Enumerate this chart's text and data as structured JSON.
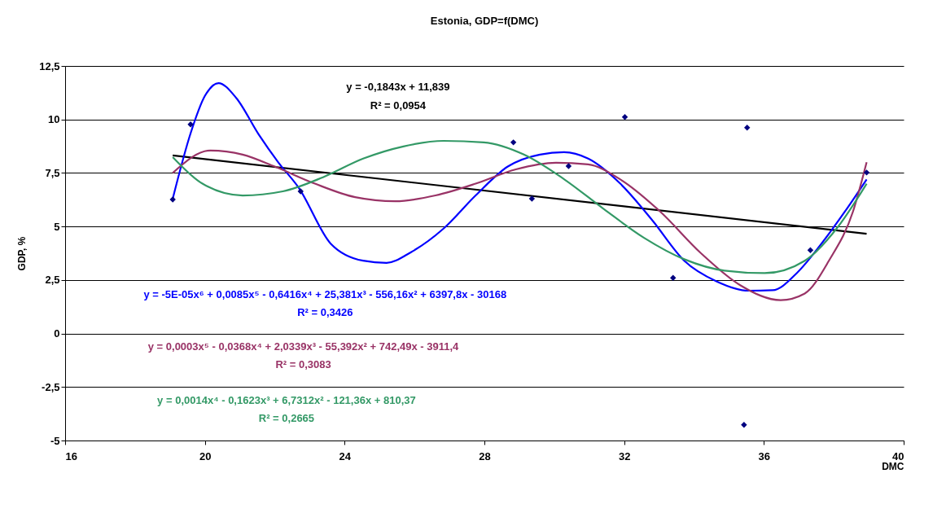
{
  "chart_data": {
    "type": "scatter",
    "title": "Estonia, GDP=f(DMC)",
    "xlabel": "DMC",
    "ylabel": "GDP, %",
    "xlim": [
      16,
      40
    ],
    "xticks": [
      16,
      20,
      24,
      28,
      32,
      36,
      40
    ],
    "ylim": [
      -5,
      12.5
    ],
    "yticks": [
      {
        "value": -5,
        "label": "-5"
      },
      {
        "value": -2.5,
        "label": "-2,5"
      },
      {
        "value": 0,
        "label": "0"
      },
      {
        "value": 2.5,
        "label": "2,5"
      },
      {
        "value": 5,
        "label": "5"
      },
      {
        "value": 7.5,
        "label": "7,5"
      },
      {
        "value": 10,
        "label": "10"
      },
      {
        "value": 12.5,
        "label": "12,5"
      }
    ],
    "grid": "y",
    "series": [
      {
        "marker": "diamond",
        "color": "#000080",
        "x": [
          19.08,
          19.59,
          22.74,
          28.83,
          29.36,
          30.41,
          32.02,
          33.4,
          35.52,
          35.43,
          37.33,
          38.94
        ],
        "values": [
          6.26,
          9.77,
          6.64,
          8.93,
          6.3,
          7.82,
          10.11,
          2.6,
          9.62,
          -4.27,
          3.89,
          7.52
        ]
      },
      {
        "type": "line",
        "color": "#000000",
        "x": [
          19.08,
          38.94
        ],
        "values": [
          8.32,
          4.66
        ]
      },
      {
        "type": "line",
        "color": "#0000ff",
        "x": [
          19.08,
          19.6,
          20.0,
          20.39,
          20.9,
          21.54,
          22.1,
          22.69,
          23.6,
          24.53,
          25.2,
          25.9,
          26.83,
          27.75,
          28.67,
          29.59,
          30.28,
          30.97,
          31.89,
          32.8,
          33.72,
          34.64,
          35.56,
          36.25,
          36.94,
          37.63,
          38.32,
          38.94
        ],
        "values": [
          6.3,
          9.4,
          11.1,
          11.7,
          11.0,
          9.3,
          8.0,
          6.8,
          4.2,
          3.4,
          3.3,
          3.8,
          4.9,
          6.45,
          7.8,
          8.36,
          8.47,
          8.17,
          7.0,
          5.3,
          3.4,
          2.44,
          2.0,
          2.02,
          2.82,
          4.16,
          5.7,
          7.2
        ]
      },
      {
        "type": "line",
        "color": "#993366",
        "x": [
          19.08,
          20.16,
          21.08,
          22.0,
          23.15,
          24.3,
          25.45,
          26.6,
          27.75,
          28.9,
          30.05,
          30.97,
          31.89,
          33.03,
          34.18,
          35.33,
          36.48,
          37.17,
          37.86,
          38.55,
          38.94
        ],
        "values": [
          7.5,
          8.55,
          8.36,
          7.8,
          7.0,
          6.37,
          6.18,
          6.45,
          7.0,
          7.67,
          7.98,
          7.9,
          7.2,
          5.7,
          3.78,
          2.25,
          1.56,
          1.87,
          3.4,
          5.7,
          8.0
        ]
      },
      {
        "type": "line",
        "color": "#339966",
        "x": [
          19.08,
          19.93,
          21.08,
          22.23,
          23.38,
          24.53,
          25.68,
          26.83,
          27.98,
          29.13,
          30.28,
          31.43,
          32.57,
          33.72,
          34.87,
          36.02,
          37.17,
          38.09,
          38.94
        ],
        "values": [
          8.24,
          7.0,
          6.45,
          6.64,
          7.3,
          8.17,
          8.74,
          9.0,
          8.93,
          8.36,
          7.21,
          5.8,
          4.47,
          3.47,
          2.94,
          2.82,
          3.4,
          4.92,
          7.0
        ]
      }
    ],
    "annotations": [
      "y = -0,1843x + 11,839",
      "R² = 0,0954",
      "y = -5E-05x⁶ + 0,0085x⁵ - 0,6416x⁴ + 25,381x³ - 556,16x² + 6397,8x - 30168",
      "R² = 0,3426",
      "y = 0,0003x⁵ - 0,0368x⁴ + 2,0339x³ - 55,392x² + 742,49x - 3911,4",
      "R² = 0,3083",
      "y = 0,0014x⁴ - 0,1623x³ + 6,7312x² - 121,36x + 810,37",
      "R² = 0,2665"
    ]
  }
}
